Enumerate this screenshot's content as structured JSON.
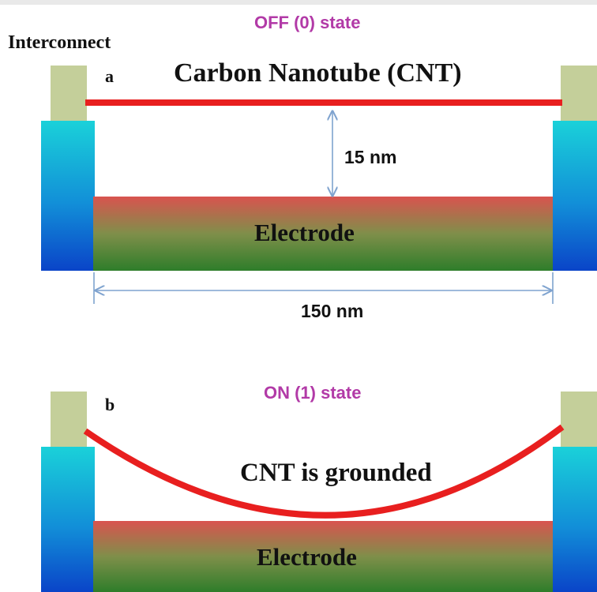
{
  "panel_a": {
    "state_label": "OFF (0) state",
    "letter": "a",
    "interconnect_label": "Interconnect",
    "cnt_label": "Carbon Nanotube (CNT)",
    "gap_label": "15 nm",
    "electrode_label": "Electrode",
    "length_label": "150 nm"
  },
  "panel_b": {
    "state_label": "ON (1) state",
    "letter": "b",
    "cnt_label": "CNT is grounded",
    "electrode_label": "Electrode"
  },
  "colors": {
    "cnt": "#e81f1f",
    "interconnect": "#c4cf9a",
    "state_text": "#b23aa7",
    "dimension_arrow": "#7fa3cf",
    "electrode_top": "#d9534f",
    "electrode_bottom": "#2e7d2a",
    "support_top": "#1ad1d9",
    "support_bottom": "#0a44c8"
  }
}
